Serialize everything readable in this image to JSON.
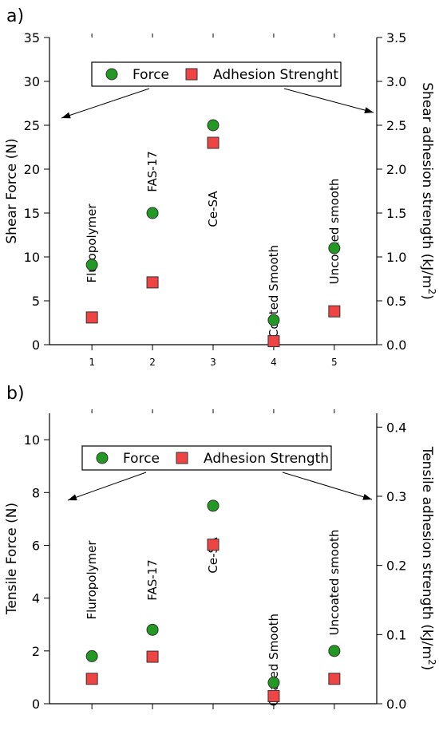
{
  "chart_data": [
    {
      "type": "scatter",
      "panel_label": "a)",
      "x": [
        1,
        2,
        3,
        4,
        5
      ],
      "x_tick_labels": [
        "1",
        "2",
        "3",
        "4",
        "5"
      ],
      "xlim": [
        0.3,
        5.7
      ],
      "ylabel": "Shear Force (N)",
      "ylim": [
        0,
        35
      ],
      "y_ticks": [
        "0",
        "5",
        "10",
        "15",
        "20",
        "25",
        "30",
        "35"
      ],
      "y2label": "Shear adhesion strength (kJ/m",
      "y2label_sup": "2",
      "y2label_end": ")",
      "y2lim": [
        0,
        3.5
      ],
      "y2_ticks": [
        "0.0",
        "0.5",
        "1.0",
        "1.5",
        "2.0",
        "2.5",
        "3.0",
        "3.5"
      ],
      "series": [
        {
          "name": "Force",
          "axis": "left",
          "marker": "circle",
          "color": "#229922",
          "values": [
            9.1,
            15.0,
            25.0,
            2.8,
            11.0
          ]
        },
        {
          "name": "Adhesion Strenght",
          "axis": "right",
          "marker": "square",
          "color": "#ee4444",
          "values": [
            0.31,
            0.71,
            2.3,
            0.04,
            0.38
          ]
        }
      ],
      "annotations": [
        "Fluropolymer",
        "FAS-17",
        "Ce-SA",
        "Coated Smooth",
        "Uncoated smooth"
      ],
      "legend": "top-center",
      "grid": false
    },
    {
      "type": "scatter",
      "panel_label": "b)",
      "x": [
        1,
        2,
        3,
        4,
        5
      ],
      "x_tick_labels": [],
      "xlim": [
        0.3,
        5.7
      ],
      "ylabel": "Tensile Force (N)",
      "ylim": [
        0,
        11
      ],
      "y_ticks": [
        "0",
        "2",
        "4",
        "6",
        "8",
        "10"
      ],
      "y2label": "Tensile adhesion strength (kJ/m",
      "y2label_sup": "2",
      "y2label_end": ")",
      "y2lim": [
        0,
        0.42
      ],
      "y2_ticks": [
        "0.0",
        "0.1",
        "0.2",
        "0.3",
        "0.4"
      ],
      "series": [
        {
          "name": "Force",
          "axis": "left",
          "marker": "circle",
          "color": "#229922",
          "values": [
            1.8,
            2.8,
            7.5,
            0.8,
            2.0
          ]
        },
        {
          "name": "Adhesion Strength",
          "axis": "right",
          "marker": "square",
          "color": "#ee4444",
          "values": [
            0.036,
            0.068,
            0.23,
            0.011,
            0.036
          ]
        }
      ],
      "annotations": [
        "Fluropolymer",
        "FAS-17",
        "Ce-SA",
        "Coated Smooth",
        "Uncoated smooth"
      ],
      "legend": "top-center",
      "grid": false
    }
  ]
}
